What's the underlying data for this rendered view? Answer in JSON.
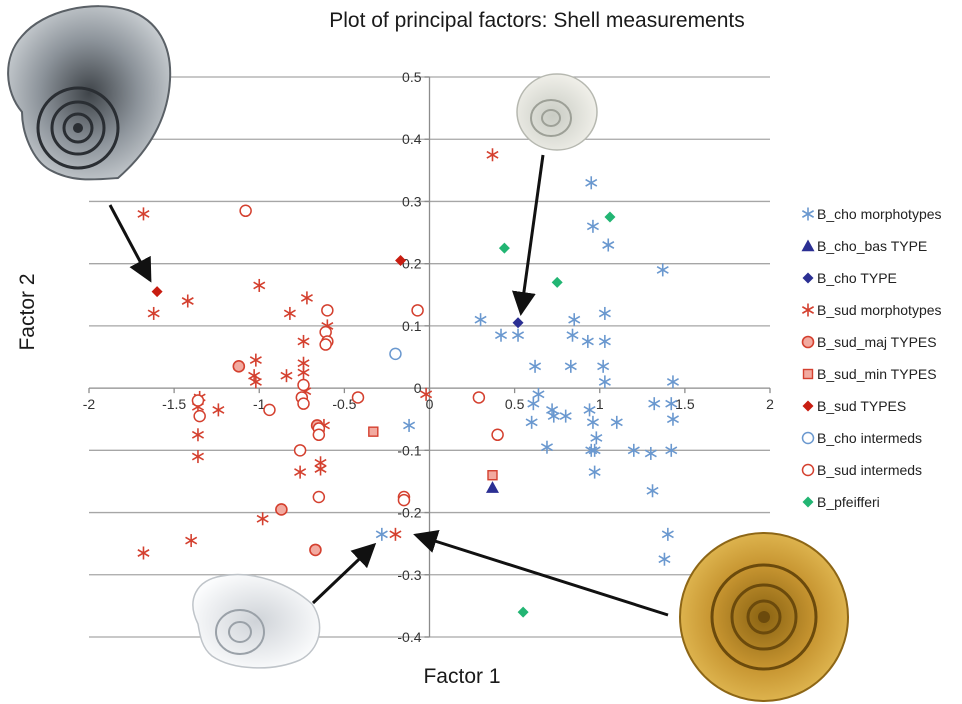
{
  "chart_data": {
    "type": "scatter",
    "title": "Plot of principal factors: Shell measurements",
    "xlabel": "Factor 1",
    "ylabel": "Factor 2",
    "xlim": [
      -2,
      2
    ],
    "ylim": [
      -0.4,
      0.5
    ],
    "x_ticks": [
      "-2",
      "-1.5",
      "-1",
      "-0.5",
      "0",
      "0.5",
      "1",
      "1.5",
      "2"
    ],
    "y_ticks": [
      "0.5",
      "0.4",
      "0.3",
      "0.2",
      "0.1",
      "0",
      "-0.1",
      "-0.2",
      "-0.3",
      "-0.4"
    ],
    "grid": "horizontal",
    "legend": "right",
    "series": [
      {
        "name": "B_cho morphotypes",
        "marker": "asterisk",
        "color": "#6a98cf",
        "points": [
          [
            0.95,
            0.33
          ],
          [
            0.96,
            0.26
          ],
          [
            1.05,
            0.23
          ],
          [
            1.37,
            0.19
          ],
          [
            1.03,
            0.12
          ],
          [
            0.3,
            0.11
          ],
          [
            0.42,
            0.085
          ],
          [
            0.52,
            0.085
          ],
          [
            0.85,
            0.11
          ],
          [
            0.84,
            0.085
          ],
          [
            0.93,
            0.075
          ],
          [
            1.03,
            0.075
          ],
          [
            0.62,
            0.035
          ],
          [
            0.83,
            0.035
          ],
          [
            1.02,
            0.035
          ],
          [
            1.03,
            0.01
          ],
          [
            1.43,
            0.01
          ],
          [
            0.64,
            -0.01
          ],
          [
            0.61,
            -0.025
          ],
          [
            0.72,
            -0.035
          ],
          [
            0.73,
            -0.045
          ],
          [
            0.8,
            -0.045
          ],
          [
            0.94,
            -0.035
          ],
          [
            1.32,
            -0.025
          ],
          [
            1.42,
            -0.025
          ],
          [
            0.6,
            -0.055
          ],
          [
            0.96,
            -0.055
          ],
          [
            1.1,
            -0.055
          ],
          [
            1.43,
            -0.05
          ],
          [
            -0.12,
            -0.06
          ],
          [
            0.98,
            -0.08
          ],
          [
            0.69,
            -0.095
          ],
          [
            0.95,
            -0.1
          ],
          [
            0.97,
            -0.1
          ],
          [
            1.2,
            -0.1
          ],
          [
            1.3,
            -0.105
          ],
          [
            1.42,
            -0.1
          ],
          [
            0.97,
            -0.135
          ],
          [
            1.31,
            -0.165
          ],
          [
            1.4,
            -0.235
          ],
          [
            1.38,
            -0.275
          ],
          [
            -0.28,
            -0.235
          ]
        ]
      },
      {
        "name": "B_cho_bas TYPE",
        "marker": "triangle",
        "color": "#2b2f93",
        "points": [
          [
            0.37,
            -0.16
          ]
        ]
      },
      {
        "name": "B_cho TYPE",
        "marker": "diamond",
        "color": "#2b2f93",
        "points": [
          [
            0.52,
            0.105
          ]
        ]
      },
      {
        "name": "B_sud morphotypes",
        "marker": "asterisk",
        "color": "#d4402f",
        "points": [
          [
            0.37,
            0.375
          ],
          [
            -1.68,
            0.28
          ],
          [
            -1.0,
            0.165
          ],
          [
            -1.42,
            0.14
          ],
          [
            -0.72,
            0.145
          ],
          [
            -1.62,
            0.12
          ],
          [
            -0.82,
            0.12
          ],
          [
            -0.6,
            0.1
          ],
          [
            -0.74,
            0.075
          ],
          [
            -1.02,
            0.045
          ],
          [
            -0.74,
            0.04
          ],
          [
            -1.03,
            0.02
          ],
          [
            -1.02,
            0.01
          ],
          [
            -0.84,
            0.02
          ],
          [
            -0.74,
            0.025
          ],
          [
            -1.35,
            -0.015
          ],
          [
            -0.73,
            -0.005
          ],
          [
            -0.02,
            -0.01
          ],
          [
            -1.36,
            -0.03
          ],
          [
            -1.24,
            -0.035
          ],
          [
            -1.36,
            -0.075
          ],
          [
            -0.62,
            -0.06
          ],
          [
            -1.36,
            -0.11
          ],
          [
            -0.64,
            -0.12
          ],
          [
            -0.64,
            -0.13
          ],
          [
            -0.76,
            -0.135
          ],
          [
            -0.98,
            -0.21
          ],
          [
            -1.68,
            -0.265
          ],
          [
            -1.4,
            -0.245
          ],
          [
            -0.2,
            -0.235
          ]
        ]
      },
      {
        "name": "B_sud_maj TYPES",
        "marker": "circle-filled",
        "color": "#d4402f",
        "points": [
          [
            -1.12,
            0.035
          ],
          [
            -0.87,
            -0.195
          ],
          [
            -0.67,
            -0.26
          ],
          [
            -0.66,
            -0.06
          ]
        ]
      },
      {
        "name": "B_sud_min TYPES",
        "marker": "square",
        "color": "#d4402f",
        "points": [
          [
            -0.33,
            -0.07
          ],
          [
            0.37,
            -0.14
          ]
        ]
      },
      {
        "name": "B_sud TYPES",
        "marker": "diamond",
        "color": "#c81d11",
        "points": [
          [
            -1.6,
            0.155
          ],
          [
            -0.17,
            0.205
          ]
        ]
      },
      {
        "name": "B_cho intermeds",
        "marker": "circle-open",
        "color": "#6a98cf",
        "points": [
          [
            -0.2,
            0.055
          ]
        ]
      },
      {
        "name": "B_sud intermeds",
        "marker": "circle-open",
        "color": "#d4402f",
        "points": [
          [
            -1.08,
            0.285
          ],
          [
            -0.6,
            0.125
          ],
          [
            -0.07,
            0.125
          ],
          [
            -0.61,
            0.09
          ],
          [
            -0.6,
            0.075
          ],
          [
            -0.61,
            0.07
          ],
          [
            -0.74,
            0.005
          ],
          [
            -0.75,
            -0.015
          ],
          [
            -0.42,
            -0.015
          ],
          [
            0.29,
            -0.015
          ],
          [
            -1.36,
            -0.02
          ],
          [
            -1.35,
            -0.045
          ],
          [
            -0.94,
            -0.035
          ],
          [
            -0.74,
            -0.025
          ],
          [
            -0.65,
            -0.065
          ],
          [
            -0.65,
            -0.075
          ],
          [
            0.4,
            -0.075
          ],
          [
            -0.76,
            -0.1
          ],
          [
            -0.65,
            -0.175
          ],
          [
            -0.15,
            -0.175
          ],
          [
            -0.15,
            -0.18
          ]
        ]
      },
      {
        "name": "B_pfeifferi",
        "marker": "diamond",
        "color": "#22b573",
        "points": [
          [
            1.06,
            0.275
          ],
          [
            0.44,
            0.225
          ],
          [
            0.75,
            0.17
          ],
          [
            0.55,
            -0.36
          ]
        ]
      }
    ]
  }
}
